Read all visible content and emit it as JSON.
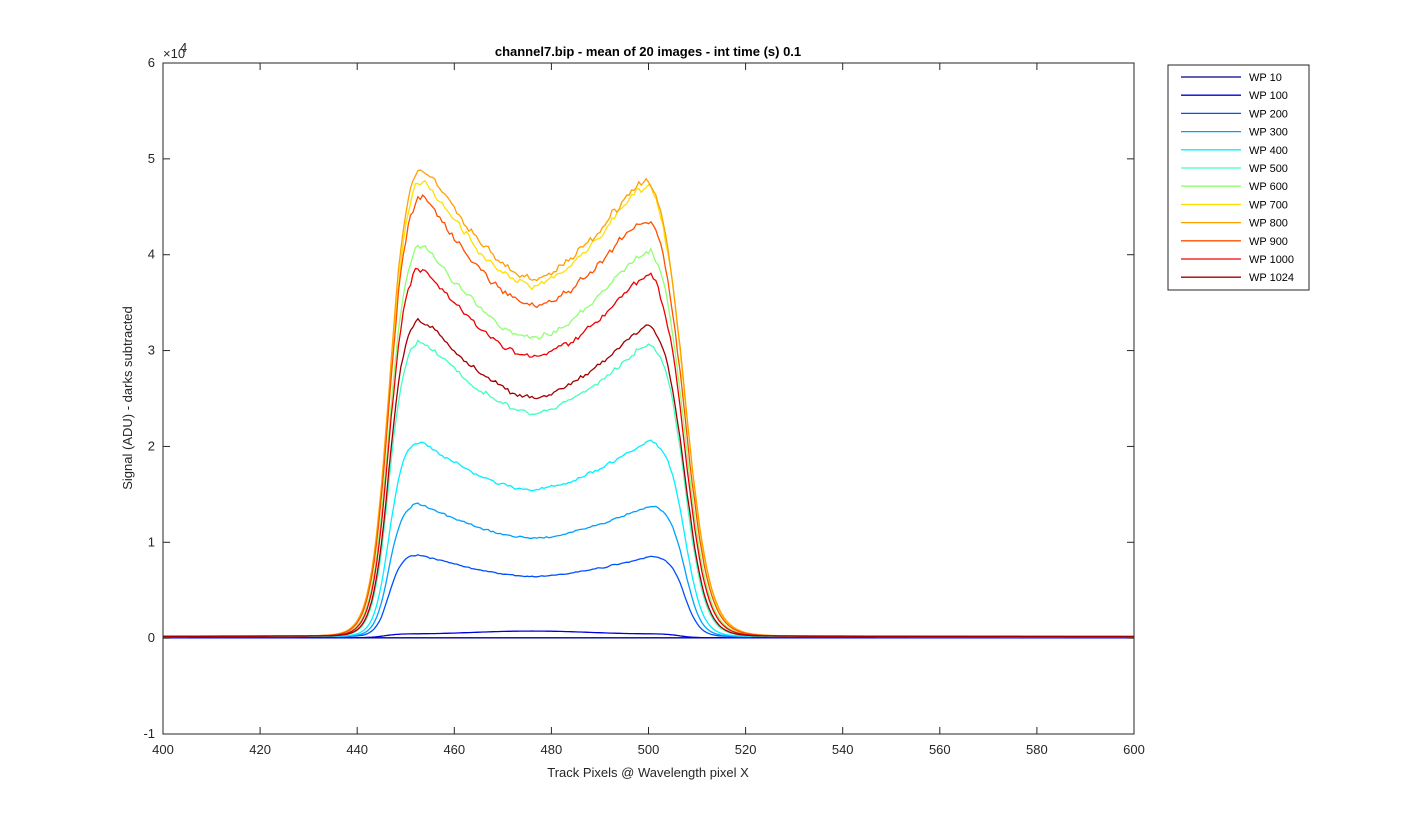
{
  "chart_data": {
    "type": "line",
    "title": "channel7.bip - mean of 20 images - int time (s) 0.1",
    "xlabel": "Track Pixels @ Wavelength pixel X",
    "ylabel": "Signal (ADU) - darks subtracted",
    "exponent_label": "×10",
    "exponent_power": "4",
    "xlim": [
      400,
      600
    ],
    "ylim": [
      -10000,
      60000
    ],
    "xticks": [
      "400",
      "420",
      "440",
      "460",
      "480",
      "500",
      "520",
      "540",
      "560",
      "580",
      "600"
    ],
    "yticks": [
      "-1",
      "0",
      "1",
      "2",
      "3",
      "4",
      "5",
      "6"
    ],
    "legend_position": "outside-top-right",
    "grid": false,
    "series": [
      {
        "name": "WP 10",
        "color": "#00008F",
        "plateau": 300,
        "edge": 300
      },
      {
        "name": "WP 100",
        "color": "#0000DF",
        "plateau": 700,
        "edge": 700
      },
      {
        "name": "WP 200",
        "color": "#0050FF",
        "plateau": 8800,
        "edge": 8600
      },
      {
        "name": "WP 300",
        "color": "#00A0FF",
        "plateau": 14200,
        "edge": 14000
      },
      {
        "name": "WP 400",
        "color": "#00F0FF",
        "plateau": 20800,
        "edge": 21000
      },
      {
        "name": "WP 500",
        "color": "#40FFBF",
        "plateau": 31800,
        "edge": 31700
      },
      {
        "name": "WP 600",
        "color": "#90FF70",
        "plateau": 42300,
        "edge": 42300
      },
      {
        "name": "WP 700",
        "color": "#FFE000",
        "plateau": 49500,
        "edge": 49800
      },
      {
        "name": "WP 800",
        "color": "#FFA000",
        "plateau": 51000,
        "edge": 50400
      },
      {
        "name": "WP 900",
        "color": "#FF5000",
        "plateau": 47700,
        "edge": 46000
      },
      {
        "name": "WP 1000",
        "color": "#EF0000",
        "plateau": 39800,
        "edge": 39400
      },
      {
        "name": "WP 1024",
        "color": "#A00000",
        "plateau": 34200,
        "edge": 33700
      }
    ]
  }
}
